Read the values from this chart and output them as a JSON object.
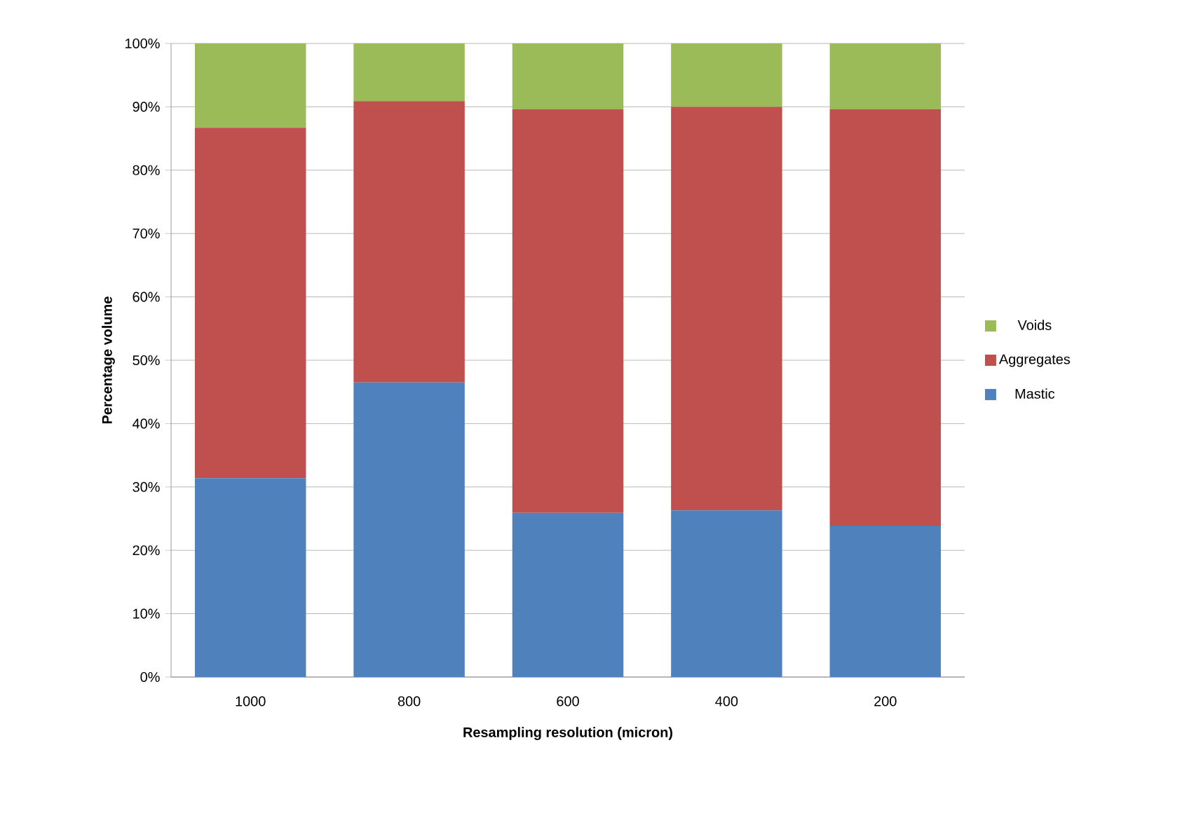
{
  "chart_data": {
    "type": "bar",
    "stacked": true,
    "xlabel": "Resampling resolution (micron)",
    "ylabel": "Percentage volume",
    "categories": [
      "1000",
      "800",
      "600",
      "400",
      "200"
    ],
    "series": [
      {
        "name": "Mastic",
        "color": "#4f81bd",
        "values": [
          31.4,
          46.5,
          25.9,
          26.3,
          23.9
        ]
      },
      {
        "name": "Aggregates",
        "color": "#c0504d",
        "values": [
          55.3,
          44.4,
          63.7,
          63.7,
          65.7
        ]
      },
      {
        "name": "Voids",
        "color": "#9bbb59",
        "values": [
          13.3,
          9.1,
          10.4,
          10.0,
          10.4
        ]
      }
    ],
    "ylim": [
      0,
      100
    ],
    "yticks": [
      {
        "value": 0,
        "label": "0%"
      },
      {
        "value": 10,
        "label": "10%"
      },
      {
        "value": 20,
        "label": "20%"
      },
      {
        "value": 30,
        "label": "30%"
      },
      {
        "value": 40,
        "label": "40%"
      },
      {
        "value": 50,
        "label": "50%"
      },
      {
        "value": 60,
        "label": "60%"
      },
      {
        "value": 70,
        "label": "70%"
      },
      {
        "value": 80,
        "label": "80%"
      },
      {
        "value": 90,
        "label": "90%"
      },
      {
        "value": 100,
        "label": "100%"
      }
    ],
    "grid": "y",
    "legend": "right"
  }
}
